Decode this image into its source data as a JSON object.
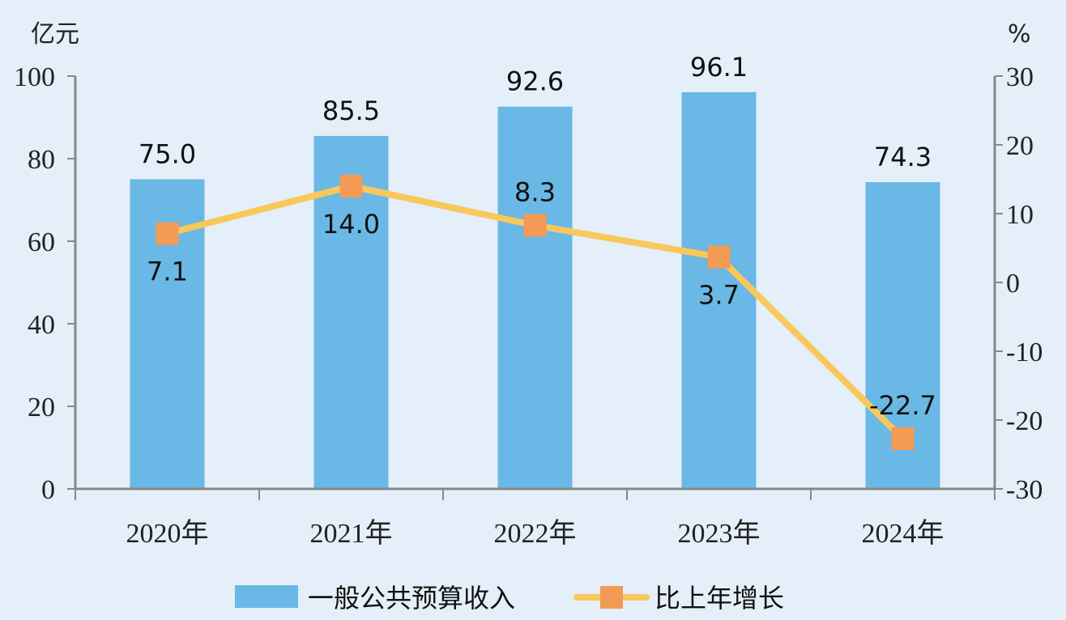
{
  "chart_data": {
    "type": "bar",
    "categories": [
      "2020年",
      "2021年",
      "2022年",
      "2023年",
      "2024年"
    ],
    "series": [
      {
        "name": "一般公共预算收入",
        "type": "bar",
        "axis": "left",
        "values": [
          75.0,
          85.5,
          92.6,
          96.1,
          74.3
        ],
        "labels": [
          "75.0",
          "85.5",
          "92.6",
          "96.1",
          "74.3"
        ],
        "color": "#6ab8e6"
      },
      {
        "name": "比上年增长",
        "type": "line",
        "axis": "right",
        "values": [
          7.1,
          14.0,
          8.3,
          3.7,
          -22.7
        ],
        "labels": [
          "7.1",
          "14.0",
          "8.3",
          "3.7",
          "-22.7"
        ],
        "line_color": "#f9c85a",
        "marker_color": "#f39a55"
      }
    ],
    "left_axis": {
      "unit": "亿元",
      "range": [
        0,
        100
      ],
      "ticks": [
        "0",
        "20",
        "40",
        "60",
        "80",
        "100"
      ]
    },
    "right_axis": {
      "unit": "%",
      "range": [
        -30,
        30
      ],
      "ticks": [
        "-30",
        "-20",
        "-10",
        "0",
        "10",
        "20",
        "30"
      ]
    },
    "legend_position": "bottom",
    "grid": false
  },
  "colors": {
    "background": "#e4eff9",
    "axis": "#888888"
  }
}
